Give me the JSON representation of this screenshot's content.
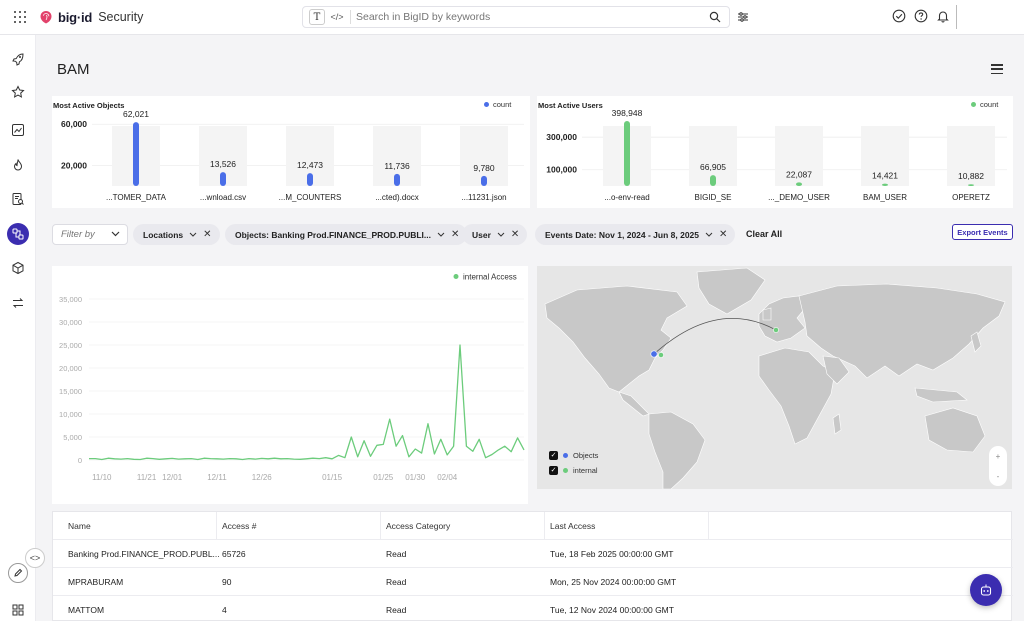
{
  "header": {
    "brand": "big·id",
    "product": "Security",
    "search_placeholder": "Search in BigID by keywords"
  },
  "sidebar": {
    "items": [
      "rocket-icon",
      "star-icon",
      "chart-icon",
      "fire-icon",
      "report-icon",
      "data-flow-icon",
      "cube-icon",
      "arrows-icon"
    ],
    "active": "data-flow-icon"
  },
  "page": {
    "title": "BAM"
  },
  "colors": {
    "accent": "#3b2db0",
    "objects": "#4a6ee8",
    "users": "#6ccc7c"
  },
  "chart_data": [
    {
      "type": "bar",
      "title": "Most Active Objects",
      "series": [
        {
          "name": "count",
          "values": [
            62021,
            13526,
            12473,
            11736,
            9780
          ]
        }
      ],
      "categories": [
        "...TOMER_DATA",
        "...wnload.csv",
        "...M_COUNTERS",
        "...cted).docx",
        "...11231.json"
      ],
      "value_labels": [
        "62,021",
        "13,526",
        "12,473",
        "11,736",
        "9,780"
      ],
      "yticks": [
        20000,
        60000
      ],
      "ytick_labels": [
        "20,000",
        "60,000"
      ],
      "ylim": [
        0,
        68000
      ]
    },
    {
      "type": "bar",
      "title": "Most Active Users",
      "series": [
        {
          "name": "count",
          "values": [
            398948,
            66905,
            22087,
            14421,
            10882
          ]
        }
      ],
      "categories": [
        "...o-env-read",
        "BIGID_SE",
        "..._DEMO_USER",
        "BAM_USER",
        "OPERETZ"
      ],
      "value_labels": [
        "398,948",
        "66,905",
        "22,087",
        "14,421",
        "10,882"
      ],
      "yticks": [
        100000,
        300000
      ],
      "ytick_labels": [
        "100,000",
        "300,000"
      ],
      "ylim": [
        0,
        430000
      ]
    },
    {
      "type": "line",
      "series": [
        {
          "name": "internal Access",
          "values": [
            300,
            300,
            100,
            400,
            250,
            200,
            300,
            150,
            100,
            400,
            300,
            150,
            250,
            350,
            200,
            250,
            300,
            100,
            400,
            300,
            250,
            200,
            300,
            250,
            100,
            300,
            200,
            350,
            250,
            400,
            250,
            300,
            200,
            150,
            250,
            400,
            300,
            500,
            250,
            1000,
            500,
            5000,
            700,
            4200,
            800,
            3200,
            3400,
            8900,
            3000,
            5300,
            700,
            2400,
            1500,
            7900,
            1300,
            4500,
            1100,
            3000,
            25000,
            3000,
            1900,
            4500,
            500,
            1200,
            2200,
            3000,
            1800,
            4800,
            2200
          ]
        }
      ],
      "xtick_labels": [
        "11/10",
        "11/21",
        "12/01",
        "12/11",
        "12/26",
        "01/15",
        "01/25",
        "01/30",
        "02/04"
      ],
      "xtick_index": [
        2,
        9,
        13,
        20,
        27,
        38,
        46,
        51,
        56
      ],
      "yticks": [
        0,
        5000,
        10000,
        15000,
        20000,
        25000,
        30000,
        35000
      ],
      "ytick_labels": [
        "0",
        "5,000",
        "10,000",
        "15,000",
        "20,000",
        "25,000",
        "30,000",
        "35,000"
      ],
      "ylim": [
        0,
        35000
      ]
    }
  ],
  "filters": {
    "filter_by_placeholder": "Filter by",
    "chips": [
      "Locations",
      "Objects: Banking Prod.FINANCE_PROD.PUBLI...",
      "User",
      "Events Date: Nov 1, 2024 - Jun 8, 2025"
    ],
    "clear_all": "Clear All",
    "export": "Export Events"
  },
  "map": {
    "legend": [
      {
        "label": "Objects",
        "color": "#4a6ee8",
        "checked": true
      },
      {
        "label": "internal",
        "color": "#6ccc7c",
        "checked": true
      }
    ],
    "zoom_in": "+",
    "zoom_out": "-"
  },
  "table": {
    "columns": [
      "Name",
      "Access #",
      "Access Category",
      "Last Access"
    ],
    "rows": [
      [
        "Banking Prod.FINANCE_PROD.PUBL...",
        "65726",
        "Read",
        "Tue, 18 Feb 2025 00:00:00 GMT"
      ],
      [
        "MPRABURAM",
        "90",
        "Read",
        "Mon, 25 Nov 2024 00:00:00 GMT"
      ],
      [
        "MATTOM",
        "4",
        "Read",
        "Tue, 12 Nov 2024 00:00:00 GMT"
      ]
    ]
  }
}
